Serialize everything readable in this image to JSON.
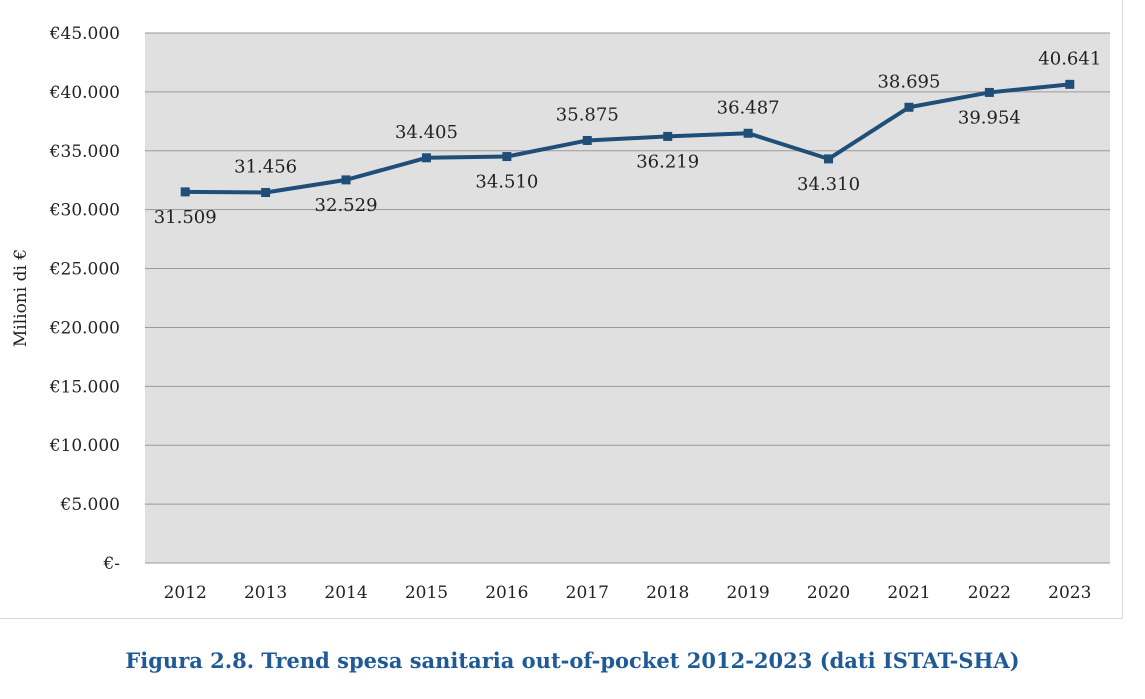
{
  "chart_data": {
    "type": "line",
    "title": "",
    "ylabel": "Milioni di €",
    "xlabel": "",
    "categories": [
      "2012",
      "2013",
      "2014",
      "2015",
      "2016",
      "2017",
      "2018",
      "2019",
      "2020",
      "2021",
      "2022",
      "2023"
    ],
    "series": [
      {
        "name": "Spesa sanitaria out-of-pocket",
        "values": [
          31509,
          31456,
          32529,
          34405,
          34510,
          35875,
          36219,
          36487,
          34310,
          38695,
          39954,
          40641
        ],
        "labels": [
          "31.509",
          "31.456",
          "32.529",
          "34.405",
          "34.510",
          "35.875",
          "36.219",
          "36.487",
          "34.310",
          "38.695",
          "39.954",
          "40.641"
        ],
        "label_positions": [
          "below",
          "above",
          "below",
          "above",
          "below",
          "above",
          "below",
          "above",
          "below",
          "above",
          "below",
          "above"
        ]
      }
    ],
    "ylim": [
      0,
      45000
    ],
    "yticks": [
      0,
      5000,
      10000,
      15000,
      20000,
      25000,
      30000,
      35000,
      40000,
      45000
    ],
    "ytick_labels": [
      "€-",
      "€5.000",
      "€10.000",
      "€15.000",
      "€20.000",
      "€25.000",
      "€30.000",
      "€35.000",
      "€40.000",
      "€45.000"
    ],
    "grid": true,
    "line_color": "#1f4e79",
    "plot_background": "#e0e0e0",
    "gridline_color": "#9a9a9a"
  },
  "caption": "Figura 2.8. Trend spesa sanitaria out-of-pocket 2012-2023 (dati ISTAT-SHA)"
}
